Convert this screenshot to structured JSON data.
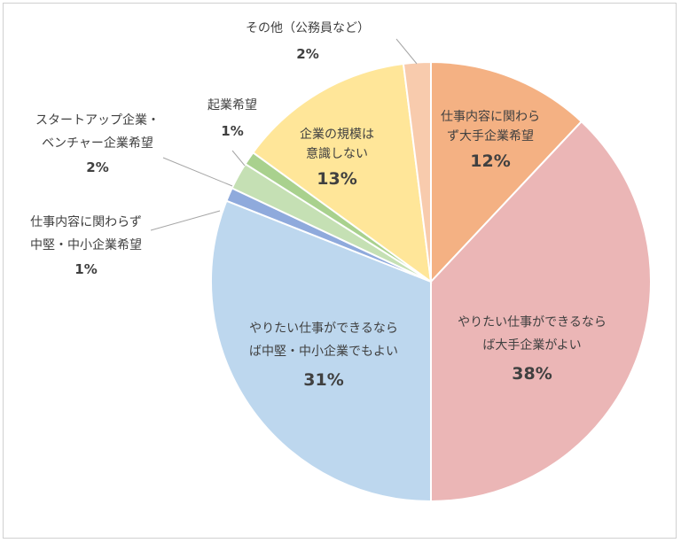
{
  "chart_data": {
    "type": "pie",
    "slices": [
      {
        "label_lines": [
          "仕事内容に関わら",
          "ず大手企業希望"
        ],
        "value_label": "12%",
        "value": 12,
        "color": "#f4b183"
      },
      {
        "label_lines": [
          "やりたい仕事ができるなら",
          "ば大手企業がよい"
        ],
        "value_label": "38%",
        "value": 38,
        "color": "#ebb6b6"
      },
      {
        "label_lines": [
          "やりたい仕事ができるなら",
          "ば中堅・中小企業でもよい"
        ],
        "value_label": "31%",
        "value": 31,
        "color": "#bdd7ee"
      },
      {
        "label_lines": [
          "仕事内容に関わらず",
          "中堅・中小企業希望"
        ],
        "value_label": "1%",
        "value": 1,
        "color": "#8faadc"
      },
      {
        "label_lines": [
          "スタートアップ企業・",
          "ベンチャー企業希望"
        ],
        "value_label": "2%",
        "value": 2,
        "color": "#c5e0b4"
      },
      {
        "label_lines": [
          "起業希望"
        ],
        "value_label": "1%",
        "value": 1,
        "color": "#a9d18e"
      },
      {
        "label_lines": [
          "企業の規模は",
          "意識しない"
        ],
        "value_label": "13%",
        "value": 13,
        "color": "#ffe699"
      },
      {
        "label_lines": [
          "その他（公務員など）"
        ],
        "value_label": "2%",
        "value": 2,
        "color": "#f8cbad"
      }
    ]
  }
}
